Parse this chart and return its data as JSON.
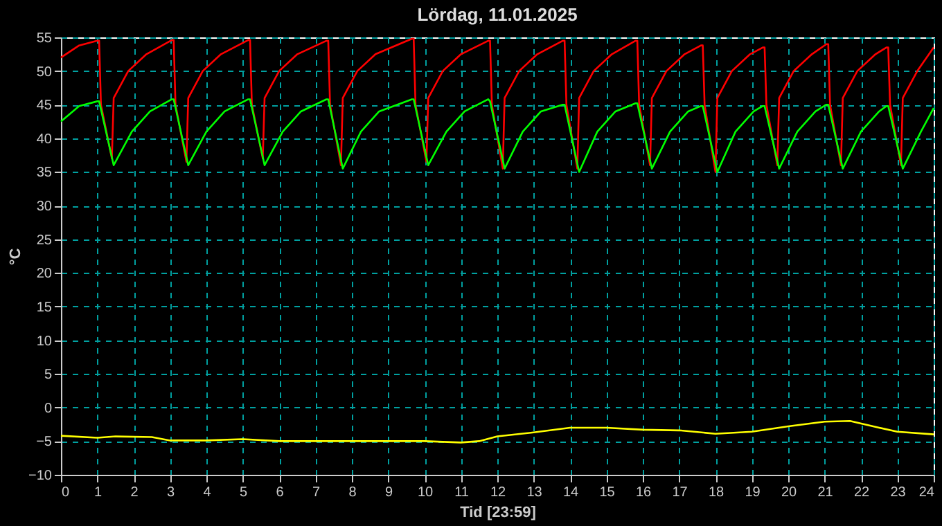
{
  "chart_data": {
    "type": "line",
    "title": "Lördag, 11.01.2025",
    "xlabel": "Tid [23:59]",
    "ylabel": "°C",
    "xlim": [
      0,
      24
    ],
    "xticks": [
      0,
      1,
      2,
      3,
      4,
      5,
      6,
      7,
      8,
      9,
      10,
      11,
      12,
      13,
      14,
      15,
      16,
      17,
      18,
      19,
      20,
      21,
      22,
      23,
      24
    ],
    "ylim": [
      -10,
      55
    ],
    "yticks": [
      -10,
      -5,
      0,
      5,
      10,
      15,
      20,
      25,
      30,
      35,
      40,
      45,
      50,
      55
    ],
    "grid": true,
    "marker": "none",
    "line_style": "solid",
    "series": [
      {
        "color": "#ff0000",
        "x": [
          0,
          0.5,
          1.0,
          1.05,
          1.1,
          1.4,
          1.45,
          1.85,
          2.35,
          3.05,
          3.1,
          3.15,
          3.45,
          3.5,
          3.9,
          4.4,
          5.15,
          5.2,
          5.25,
          5.55,
          5.6,
          6.0,
          6.5,
          7.3,
          7.35,
          7.4,
          7.7,
          7.75,
          8.15,
          8.65,
          9.65,
          9.7,
          9.75,
          10.05,
          10.1,
          10.5,
          11.0,
          11.75,
          11.8,
          11.85,
          12.15,
          12.2,
          12.6,
          13.1,
          13.8,
          13.85,
          13.9,
          14.2,
          14.25,
          14.65,
          15.15,
          15.8,
          15.85,
          15.9,
          16.2,
          16.25,
          16.65,
          17.15,
          17.6,
          17.65,
          17.7,
          18.0,
          18.05,
          18.45,
          18.95,
          19.3,
          19.35,
          19.4,
          19.7,
          19.75,
          20.15,
          20.65,
          21.05,
          21.1,
          21.15,
          21.45,
          21.5,
          21.9,
          22.4,
          22.7,
          22.75,
          22.8,
          23.1,
          23.15,
          23.55,
          24
        ],
        "values": [
          52,
          53.8,
          54.5,
          54.5,
          45,
          37,
          46,
          50,
          52.5,
          54.6,
          54.6,
          45,
          36.5,
          46,
          50,
          52.5,
          54.6,
          54.6,
          45,
          37,
          46,
          50,
          52.5,
          54.5,
          54.5,
          45,
          36,
          46,
          50,
          52.5,
          54.8,
          54.8,
          45,
          36.5,
          46,
          50,
          52.5,
          54.5,
          54.5,
          45,
          35.5,
          46,
          50,
          52.5,
          54.5,
          54.5,
          45,
          35.5,
          46,
          50,
          52.5,
          54.5,
          54.5,
          45,
          36,
          46,
          50,
          52.5,
          53.8,
          53.8,
          45,
          35,
          46,
          50,
          52.5,
          53.5,
          53.5,
          45,
          36,
          46,
          50,
          52.5,
          54,
          54,
          45,
          36,
          46,
          50,
          52.5,
          53.5,
          53.5,
          45,
          36,
          46,
          50,
          53.5
        ]
      },
      {
        "color": "#00ff00",
        "x": [
          0,
          0.5,
          1.0,
          1.05,
          1.45,
          1.95,
          2.45,
          3.05,
          3.1,
          3.5,
          4.0,
          4.5,
          5.15,
          5.2,
          5.6,
          6.1,
          6.6,
          7.3,
          7.35,
          7.75,
          8.25,
          8.75,
          9.65,
          9.7,
          10.1,
          10.6,
          11.1,
          11.75,
          11.8,
          12.2,
          12.7,
          13.2,
          13.8,
          13.85,
          14.25,
          14.75,
          15.25,
          15.8,
          15.85,
          16.25,
          16.75,
          17.25,
          17.6,
          17.65,
          18.05,
          18.55,
          19.05,
          19.3,
          19.35,
          19.75,
          20.25,
          20.75,
          21.05,
          21.1,
          21.5,
          22.0,
          22.5,
          22.7,
          22.75,
          23.15,
          23.65,
          24
        ],
        "values": [
          42.5,
          44.8,
          45.5,
          45.5,
          36,
          41,
          44,
          45.8,
          45.8,
          36,
          41,
          44,
          45.8,
          45.8,
          36,
          41,
          44,
          45.8,
          45.8,
          35.5,
          41,
          44,
          45.8,
          45.8,
          36,
          41,
          44,
          45.8,
          45.5,
          35.5,
          41,
          44,
          45,
          45,
          35,
          41,
          44,
          45.2,
          45.2,
          35.5,
          41,
          44,
          44.8,
          44.8,
          35,
          41,
          44,
          44.8,
          44.8,
          35.5,
          41,
          44,
          45,
          45,
          35.5,
          41,
          44,
          44.8,
          44.8,
          35.5,
          41,
          44.5
        ]
      },
      {
        "color": "#ffff00",
        "x": [
          0,
          1,
          1.5,
          2.5,
          3,
          4,
          5,
          6,
          8,
          10,
          11,
          11.5,
          12,
          13,
          14,
          15,
          16,
          17,
          18,
          19,
          20,
          21,
          21.7,
          22.5,
          23,
          24
        ],
        "values": [
          -4.2,
          -4.5,
          -4.3,
          -4.4,
          -4.9,
          -4.9,
          -4.7,
          -5,
          -5,
          -5,
          -5.2,
          -5,
          -4.3,
          -3.7,
          -3,
          -3,
          -3.3,
          -3.4,
          -3.9,
          -3.6,
          -2.8,
          -2.1,
          -2,
          -3,
          -3.6,
          -4
        ]
      }
    ]
  }
}
